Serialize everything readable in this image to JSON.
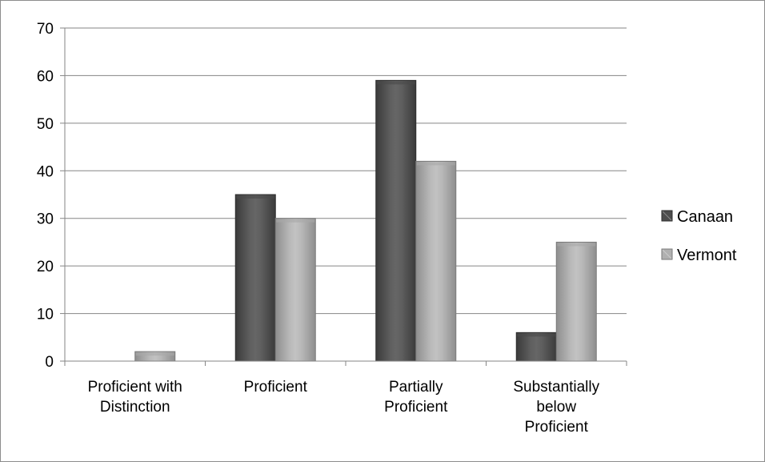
{
  "chart_data": {
    "type": "bar",
    "title": "",
    "xlabel": "",
    "ylabel": "",
    "ylim": [
      0,
      70
    ],
    "y_ticks": [
      0,
      10,
      20,
      30,
      40,
      50,
      60,
      70
    ],
    "grid": true,
    "legend_position": "right",
    "categories": [
      "Proficient with Distinction",
      "Proficient",
      "Partially Proficient",
      "Substantially below Proficient"
    ],
    "category_label_lines": [
      [
        "Proficient with",
        "Distinction"
      ],
      [
        "Proficient"
      ],
      [
        "Partially",
        "Proficient"
      ],
      [
        "Substantially",
        "below",
        "Proficient"
      ]
    ],
    "series": [
      {
        "name": "Canaan",
        "values": [
          0,
          35,
          59,
          6
        ],
        "color": "#595959"
      },
      {
        "name": "Vermont",
        "values": [
          2,
          30,
          42,
          25
        ],
        "color": "#b3b3b3"
      }
    ]
  }
}
